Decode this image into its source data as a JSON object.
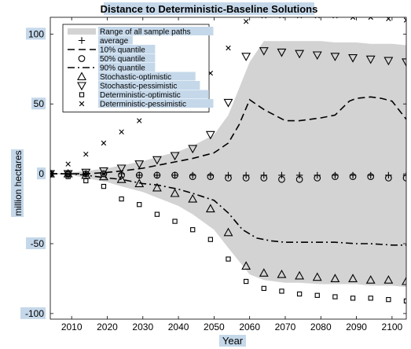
{
  "chart_data": {
    "type": "line",
    "title": "Distance to Deterministic-Baseline Solutions",
    "xlabel": "Year",
    "ylabel": "million hectares",
    "xlim": [
      2004,
      2104
    ],
    "ylim": [
      -104,
      112
    ],
    "xticks": [
      2010,
      2020,
      2030,
      2040,
      2050,
      2060,
      2070,
      2080,
      2090,
      2100
    ],
    "yticks": [
      -100,
      -50,
      0,
      50,
      100
    ],
    "grid": false,
    "legend_position": "top-left",
    "colors": {
      "band": "#d3d3d3",
      "line": "#000000",
      "label_highlight": "#c5d8ea"
    },
    "band": {
      "name": "Range of all sample paths",
      "x": [
        2004,
        2010,
        2014,
        2020,
        2024,
        2030,
        2034,
        2040,
        2044,
        2050,
        2054,
        2060,
        2064,
        2070,
        2074,
        2080,
        2084,
        2090,
        2094,
        2100,
        2104
      ],
      "upper": [
        0,
        1,
        2,
        4,
        6,
        9,
        12,
        16,
        20,
        28,
        42,
        80,
        95,
        95,
        95,
        95,
        94,
        94,
        93,
        93,
        92
      ],
      "lower": [
        0,
        -1,
        -3,
        -6,
        -9,
        -13,
        -17,
        -23,
        -29,
        -40,
        -53,
        -72,
        -76,
        -78,
        -78,
        -79,
        -79,
        -79,
        -80,
        -80,
        -81
      ]
    },
    "series": [
      {
        "name": "average",
        "style": "marker-plus",
        "x": [
          2004,
          2009,
          2014,
          2019,
          2024,
          2029,
          2034,
          2039,
          2044,
          2049,
          2054,
          2059,
          2064,
          2069,
          2074,
          2079,
          2084,
          2089,
          2094,
          2099,
          2104
        ],
        "values": [
          0,
          0,
          0,
          0,
          0,
          -1,
          -1,
          -1,
          -1,
          -1,
          -1,
          -1,
          -1,
          -1,
          -1,
          -1,
          -1,
          -1,
          -1,
          -1,
          -1
        ]
      },
      {
        "name": "10% quantile",
        "style": "dashed",
        "x": [
          2004,
          2010,
          2014,
          2020,
          2024,
          2030,
          2034,
          2040,
          2044,
          2050,
          2054,
          2057,
          2060,
          2064,
          2070,
          2074,
          2080,
          2084,
          2088,
          2090,
          2094,
          2097,
          2100,
          2104
        ],
        "values": [
          0,
          0,
          0,
          1,
          2,
          4,
          6,
          9,
          11,
          15,
          22,
          35,
          53,
          46,
          38,
          38,
          40,
          42,
          52,
          54,
          55,
          54,
          52,
          39
        ]
      },
      {
        "name": "50% quantile",
        "style": "marker-circle",
        "x": [
          2004,
          2009,
          2014,
          2019,
          2024,
          2029,
          2034,
          2039,
          2044,
          2049,
          2054,
          2059,
          2064,
          2069,
          2074,
          2079,
          2084,
          2089,
          2094,
          2099,
          2104
        ],
        "values": [
          0,
          0,
          0,
          0,
          -1,
          -1,
          -1,
          -1,
          -2,
          -2,
          -3,
          -3,
          -3,
          -4,
          -4,
          -3,
          -2,
          -2,
          -2,
          -3,
          -3
        ]
      },
      {
        "name": "90% quantile",
        "style": "dashdot",
        "x": [
          2004,
          2010,
          2014,
          2020,
          2024,
          2030,
          2034,
          2040,
          2044,
          2050,
          2054,
          2058,
          2062,
          2066,
          2070,
          2074,
          2080,
          2084,
          2090,
          2094,
          2100,
          2104
        ],
        "values": [
          0,
          0,
          -1,
          -3,
          -4,
          -7,
          -8,
          -11,
          -14,
          -19,
          -28,
          -40,
          -46,
          -48,
          -49,
          -49,
          -49,
          -49,
          -50,
          -50,
          -51,
          -51
        ]
      },
      {
        "name": "Stochastic-optimistic",
        "style": "marker-triangle-up",
        "x": [
          2004,
          2009,
          2014,
          2019,
          2024,
          2029,
          2034,
          2039,
          2044,
          2049,
          2054,
          2059,
          2064,
          2069,
          2074,
          2079,
          2084,
          2089,
          2094,
          2099,
          2104
        ],
        "values": [
          0,
          0,
          -1,
          -2,
          -4,
          -7,
          -10,
          -14,
          -18,
          -25,
          -42,
          -66,
          -71,
          -72,
          -73,
          -74,
          -75,
          -75,
          -76,
          -76,
          -77
        ]
      },
      {
        "name": "Stochastic-pessimistic",
        "style": "marker-triangle-down",
        "x": [
          2004,
          2009,
          2014,
          2019,
          2024,
          2029,
          2034,
          2039,
          2044,
          2049,
          2054,
          2059,
          2064,
          2069,
          2074,
          2079,
          2084,
          2089,
          2094,
          2099,
          2104
        ],
        "values": [
          0,
          0,
          1,
          2,
          4,
          7,
          10,
          13,
          18,
          28,
          51,
          84,
          88,
          87,
          86,
          85,
          84,
          83,
          82,
          81,
          80
        ]
      },
      {
        "name": "Deterministic-optimistic",
        "style": "marker-square",
        "x": [
          2004,
          2009,
          2014,
          2019,
          2024,
          2029,
          2034,
          2039,
          2044,
          2049,
          2054,
          2059,
          2064,
          2069,
          2074,
          2079,
          2084,
          2089,
          2094,
          2099,
          2104
        ],
        "values": [
          0,
          -2,
          -5,
          -9,
          -18,
          -22,
          -29,
          -34,
          -40,
          -47,
          -61,
          -77,
          -82,
          -84,
          -86,
          -87,
          -88,
          -89,
          -89,
          -90,
          -91
        ]
      },
      {
        "name": "Deterministic-pessimistic",
        "style": "marker-x",
        "x": [
          2004,
          2009,
          2014,
          2019,
          2024,
          2029,
          2034,
          2039,
          2044,
          2049,
          2054,
          2059,
          2064,
          2069,
          2074,
          2079,
          2084,
          2089,
          2094,
          2099,
          2104
        ],
        "values": [
          0,
          7,
          14,
          22,
          30,
          38,
          46,
          55,
          63,
          72,
          90,
          109,
          113,
          113,
          113,
          113,
          113,
          112,
          112,
          111,
          110
        ]
      }
    ]
  }
}
